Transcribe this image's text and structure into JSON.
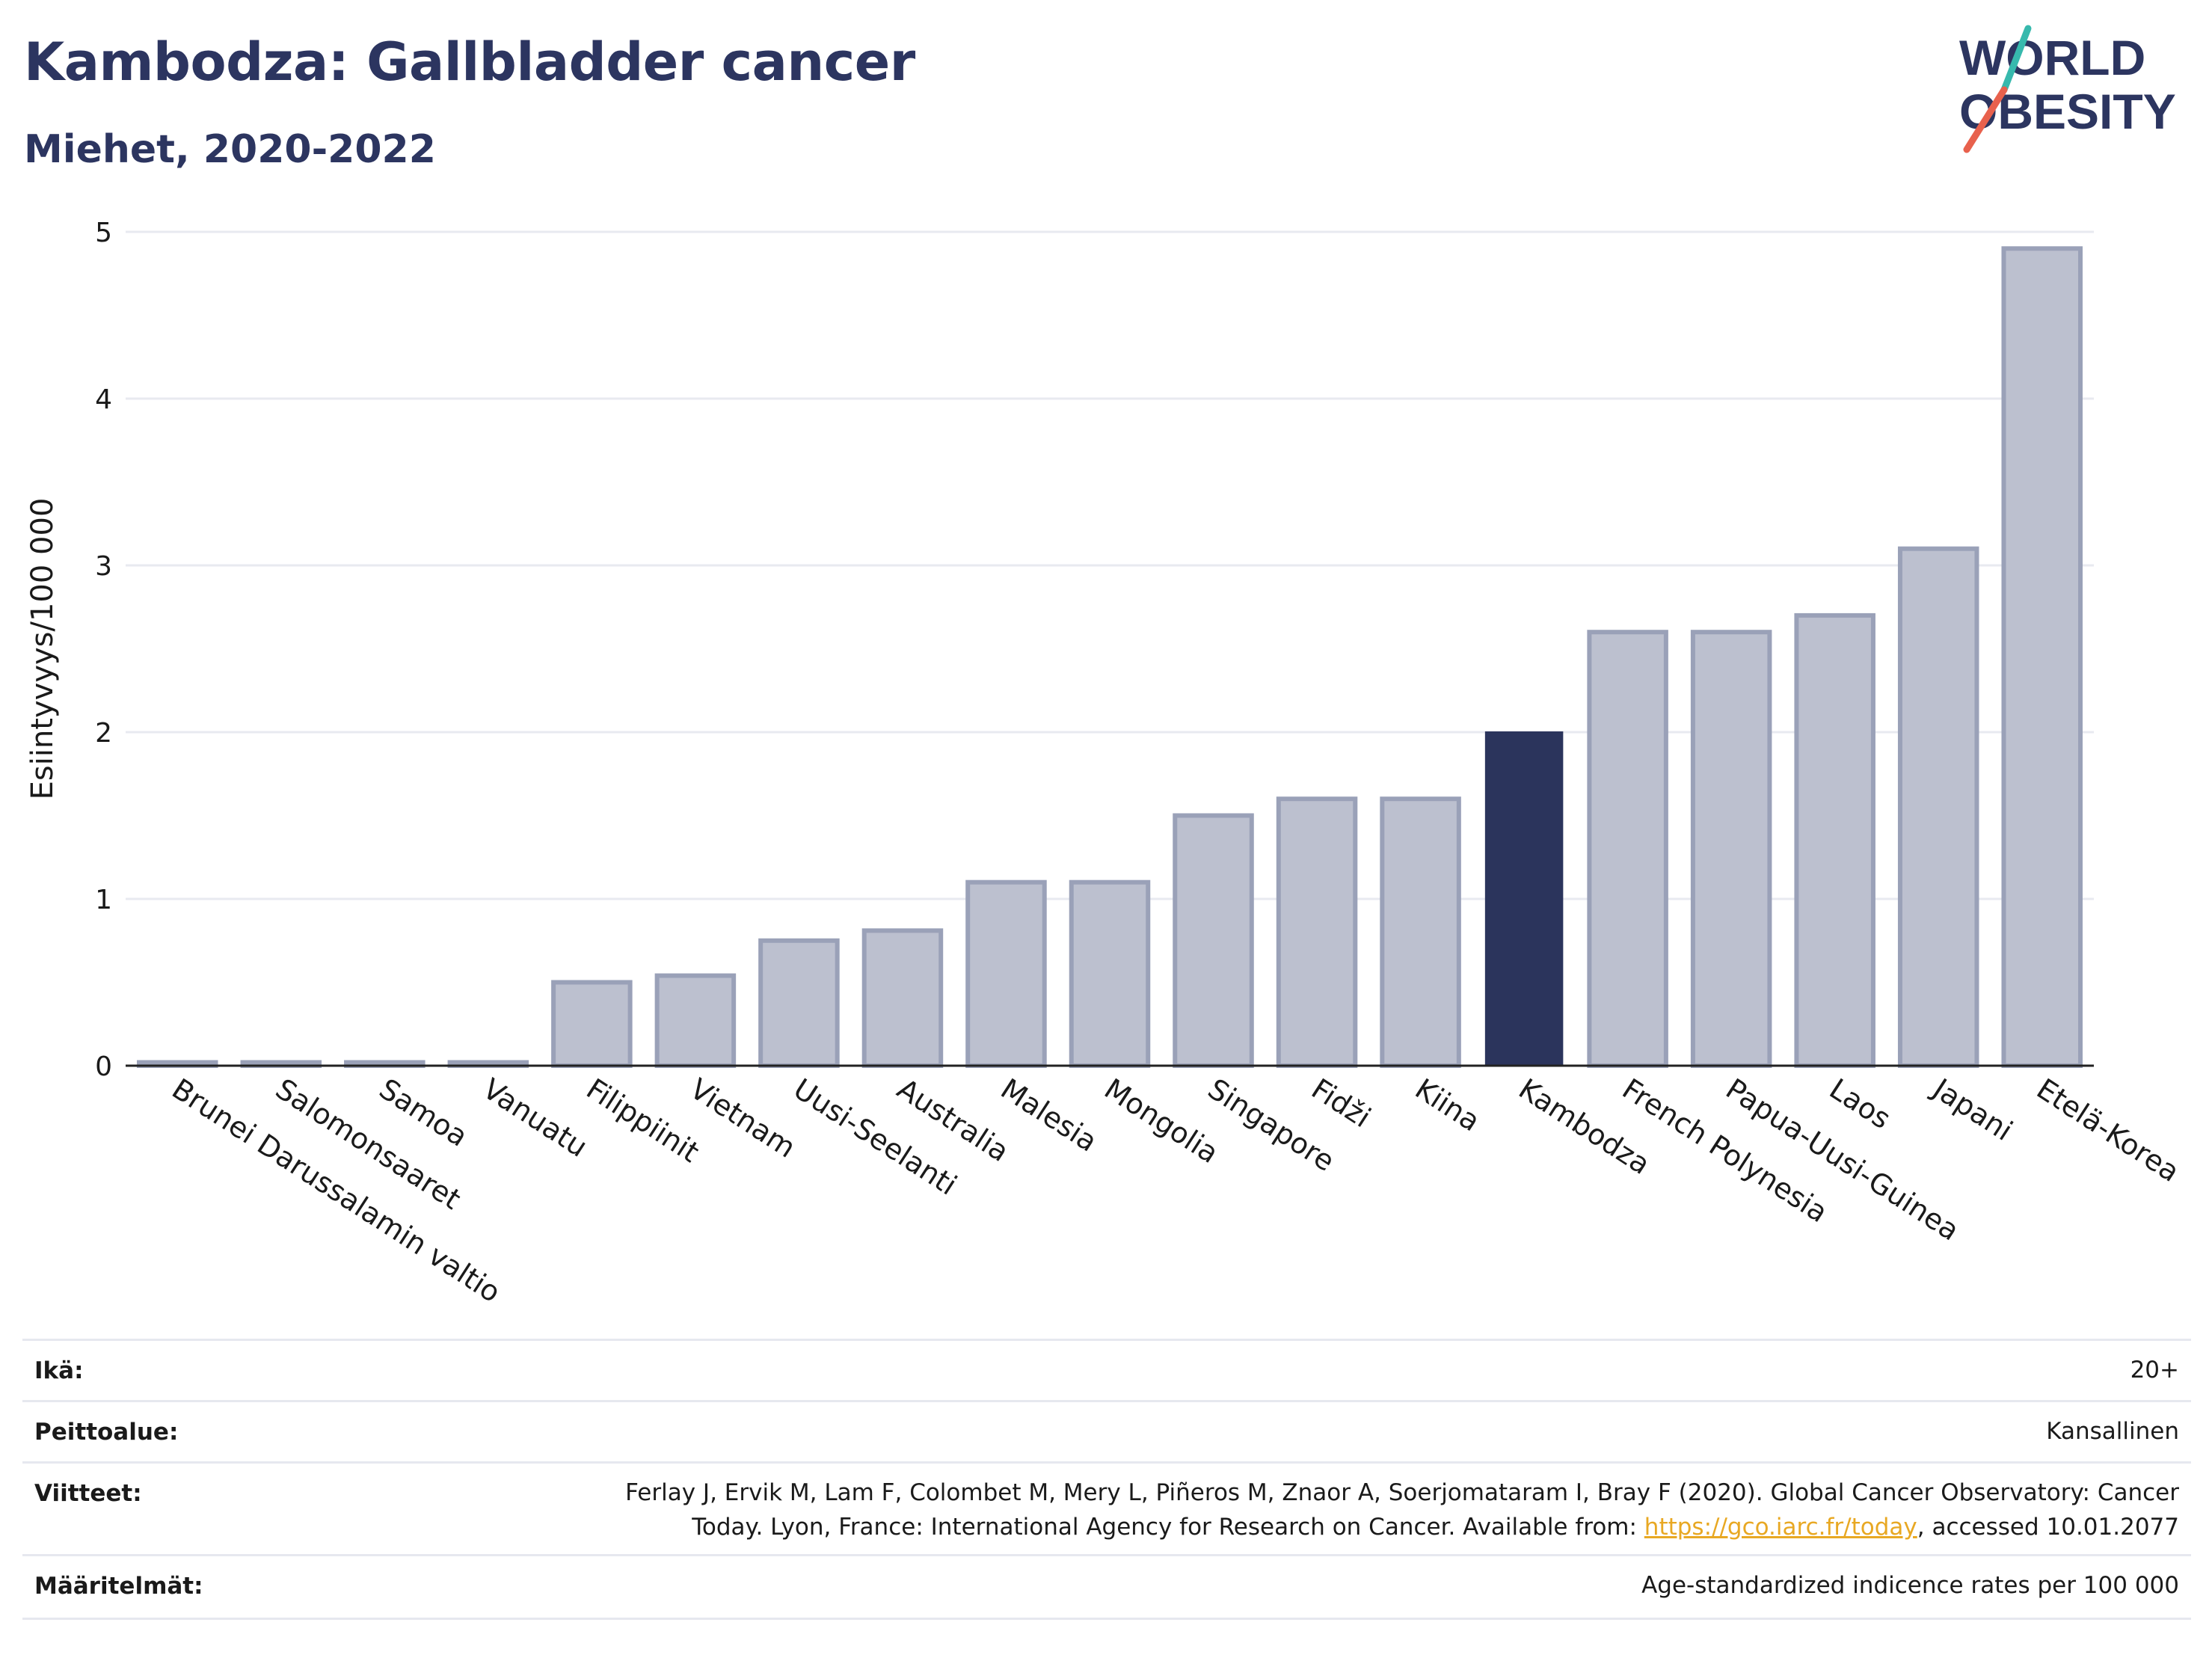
{
  "header": {
    "title": "Kambodza: Gallbladder cancer",
    "subtitle": "Miehet, 2020-2022"
  },
  "logo": {
    "line1": "WORLD",
    "line2": "OBESITY",
    "accent_teal": "#37b9ad",
    "accent_red": "#e8614d"
  },
  "colors": {
    "bar": "#bcc0cf",
    "bar_edge": "#9aa1b8",
    "highlight": "#2b345c",
    "grid": "#e8eaf0",
    "text": "#1a1a1a"
  },
  "chart_data": {
    "type": "bar",
    "title": "Kambodza: Gallbladder cancer",
    "subtitle": "Miehet, 2020-2022",
    "ylabel": "Esiintyvyys/100 000",
    "xlabel": "",
    "ylim": [
      0,
      5
    ],
    "yticks": [
      0,
      1,
      2,
      3,
      4,
      5
    ],
    "grid": true,
    "highlight": "Kambodza",
    "categories": [
      "Brunei Darussalamin valtio",
      "Salomonsaaret",
      "Samoa",
      "Vanuatu",
      "Filippiinit",
      "Vietnam",
      "Uusi-Seelanti",
      "Australia",
      "Malesia",
      "Mongolia",
      "Singapore",
      "Fidži",
      "Kiina",
      "Kambodza",
      "French Polynesia",
      "Papua-Uusi-Guinea",
      "Laos",
      "Japani",
      "Etelä-Korea"
    ],
    "values": [
      0.02,
      0.02,
      0.02,
      0.02,
      0.5,
      0.54,
      0.75,
      0.81,
      1.1,
      1.1,
      1.5,
      1.6,
      1.6,
      2.0,
      2.6,
      2.6,
      2.7,
      3.1,
      4.9
    ]
  },
  "meta": {
    "rows": [
      {
        "label": "Ikä:",
        "value": "20+"
      },
      {
        "label": "Peittoalue:",
        "value": "Kansallinen"
      },
      {
        "label": "Viitteet:",
        "value_line1": "Ferlay J, Ervik M, Lam F, Colombet M, Mery L, Piñeros M, Znaor A, Soerjomataram I, Bray F (2020). Global Cancer Observatory: Cancer",
        "value_line2_pre": "Today. Lyon, France: International Agency for Research on Cancer. Available from: ",
        "link": "https://gco.iarc.fr/today",
        "value_line2_post": ", accessed 10.01.2077"
      },
      {
        "label": "Määritelmät:",
        "value": "Age-standardized indicence rates per 100 000"
      }
    ]
  }
}
